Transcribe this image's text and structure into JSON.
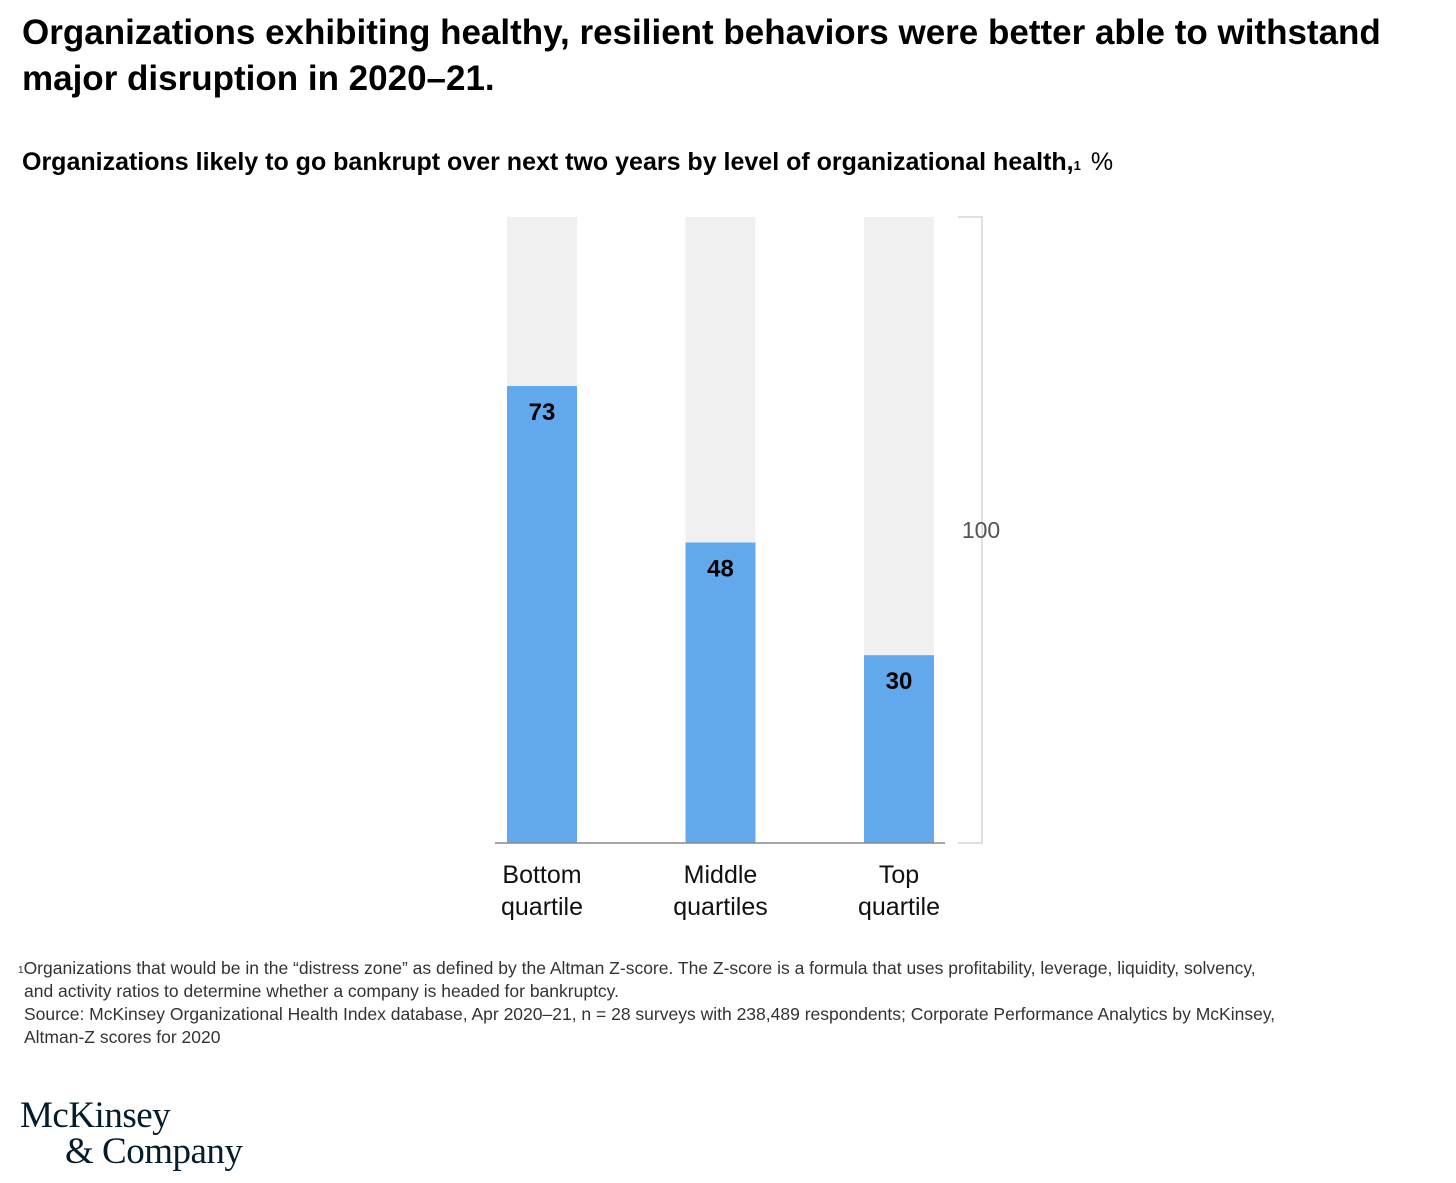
{
  "title": "Organizations exhibiting healthy, resilient behaviors were better able to withstand major disruption in 2020–21.",
  "subtitle": {
    "text": "Organizations likely to go bankrupt over next two years by level of organizational health,",
    "footnote_mark": "1",
    "unit": "%"
  },
  "colors": {
    "bar_fill": "#62a8ec",
    "bar_background": "#f0f0f0",
    "axis": "#888888",
    "scale_bracket": "#d5d5d5"
  },
  "chart_data": {
    "type": "bar",
    "categories": [
      [
        "Bottom",
        "quartile"
      ],
      [
        "Middle",
        "quartiles"
      ],
      [
        "Top",
        "quartile"
      ]
    ],
    "values": [
      73,
      48,
      30
    ],
    "ylim": [
      0,
      100
    ],
    "scale_label": "100",
    "data_labels": [
      "73",
      "48",
      "30"
    ],
    "grid": false,
    "legend": "none"
  },
  "footnote": {
    "mark": "1",
    "lines": [
      "Organizations that would be in the “distress zone” as defined by the Altman Z-score. The Z-score is a formula that uses profitability, leverage, liquidity, solvency,",
      "and activity ratios to determine whether a company is headed for bankruptcy.",
      "Source: McKinsey Organizational Health Index database, Apr 2020–21, n = 28 surveys with 238,489 respondents; Corporate Performance Analytics by McKinsey,",
      "Altman-Z scores for 2020"
    ]
  },
  "logo": {
    "line1": "McKinsey",
    "line2": "& Company"
  }
}
